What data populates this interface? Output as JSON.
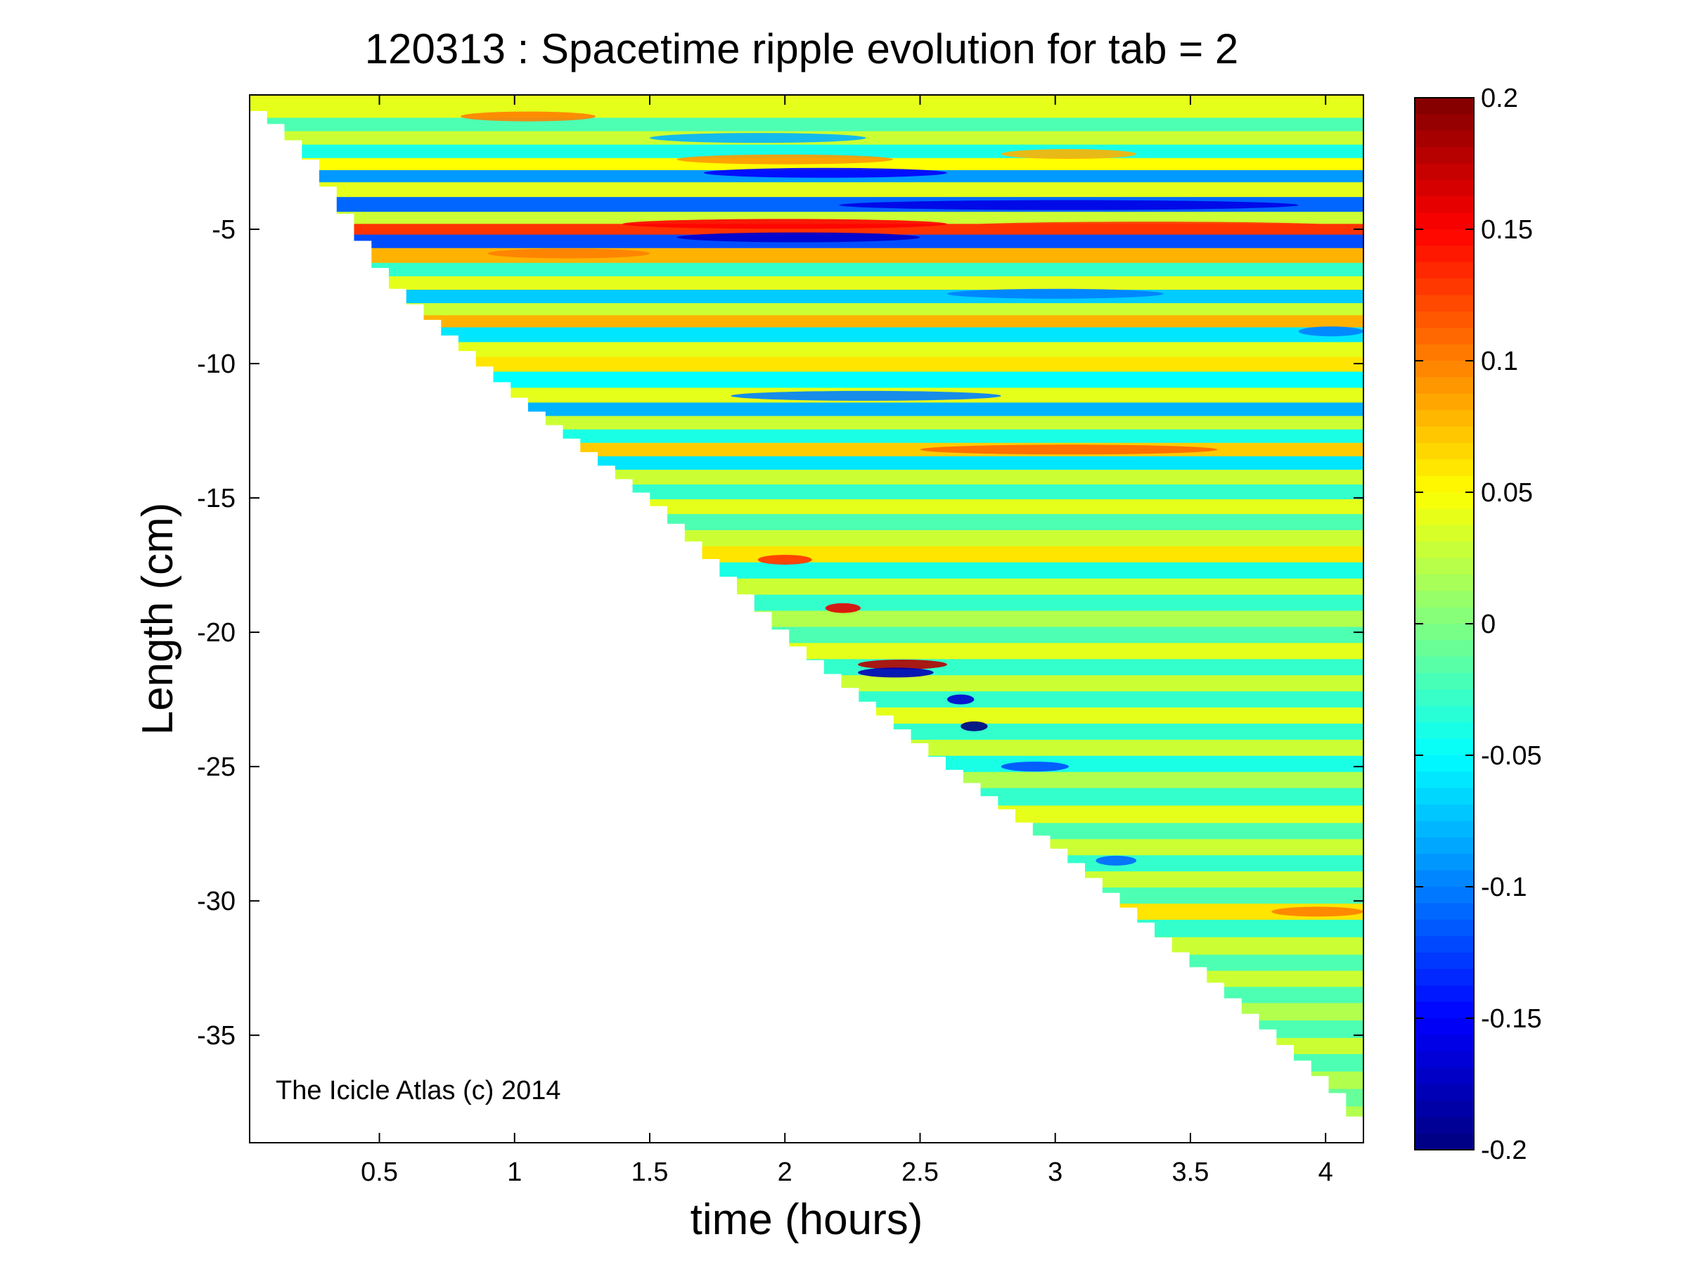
{
  "chart_data": {
    "type": "heatmap",
    "title": "120313 : Spacetime ripple evolution for tab = 2",
    "xlabel": "time (hours)",
    "ylabel": "Length (cm)",
    "annotation": "The Icicle Atlas (c) 2014",
    "xlim": [
      0.02,
      4.14
    ],
    "ylim": [
      -39,
      0
    ],
    "x_ticks": [
      {
        "value": 0.5,
        "label": "0.5"
      },
      {
        "value": 1,
        "label": "1"
      },
      {
        "value": 1.5,
        "label": "1.5"
      },
      {
        "value": 2,
        "label": "2"
      },
      {
        "value": 2.5,
        "label": "2.5"
      },
      {
        "value": 3,
        "label": "3"
      },
      {
        "value": 3.5,
        "label": "3.5"
      },
      {
        "value": 4,
        "label": "4"
      }
    ],
    "y_ticks": [
      {
        "value": -5,
        "label": "-5"
      },
      {
        "value": -10,
        "label": "-10"
      },
      {
        "value": -15,
        "label": "-15"
      },
      {
        "value": -20,
        "label": "-20"
      },
      {
        "value": -25,
        "label": "-25"
      },
      {
        "value": -30,
        "label": "-30"
      },
      {
        "value": -35,
        "label": "-35"
      }
    ],
    "colorbar": {
      "range": [
        -0.2,
        0.2
      ],
      "colormap": "jet",
      "ticks": [
        {
          "value": 0.2,
          "label": "0.2"
        },
        {
          "value": 0.15,
          "label": "0.15"
        },
        {
          "value": 0.1,
          "label": "0.1"
        },
        {
          "value": 0.05,
          "label": "0.05"
        },
        {
          "value": 0,
          "label": "0"
        },
        {
          "value": -0.05,
          "label": "-0.05"
        },
        {
          "value": -0.1,
          "label": "-0.1"
        },
        {
          "value": -0.15,
          "label": "-0.15"
        },
        {
          "value": -0.2,
          "label": "-0.2"
        }
      ]
    },
    "grid": false,
    "data_boundary": [
      {
        "t": 0.02,
        "length": -0.6
      },
      {
        "t": 0.1,
        "length": -1.2
      },
      {
        "t": 0.2,
        "length": -2.2
      },
      {
        "t": 0.5,
        "length": -6.9
      },
      {
        "t": 1.0,
        "length": -11.4
      },
      {
        "t": 1.5,
        "length": -15.3
      },
      {
        "t": 2.0,
        "length": -20.4
      },
      {
        "t": 2.5,
        "length": -24.4
      },
      {
        "t": 3.0,
        "length": -28.2
      },
      {
        "t": 3.5,
        "length": -32.5
      },
      {
        "t": 4.0,
        "length": -37.0
      },
      {
        "t": 4.14,
        "length": -38.9
      }
    ],
    "bands": [
      {
        "length": -0.6,
        "value": 0.04
      },
      {
        "length": -1.1,
        "value": -0.02
      },
      {
        "length": -1.6,
        "value": 0.03
      },
      {
        "length": -2.1,
        "value": -0.04
      },
      {
        "length": -2.6,
        "value": 0.05
      },
      {
        "length": -3.0,
        "value": -0.09
      },
      {
        "length": -3.5,
        "value": 0.04
      },
      {
        "length": -4.1,
        "value": -0.11
      },
      {
        "length": -4.6,
        "value": 0.03
      },
      {
        "length": -5.0,
        "value": 0.13
      },
      {
        "length": -5.4,
        "value": -0.12
      },
      {
        "length": -6.0,
        "value": 0.08
      },
      {
        "length": -6.5,
        "value": -0.03
      },
      {
        "length": -7.0,
        "value": 0.04
      },
      {
        "length": -7.5,
        "value": -0.07
      },
      {
        "length": -8.0,
        "value": 0.03
      },
      {
        "length": -8.4,
        "value": 0.08
      },
      {
        "length": -8.9,
        "value": -0.06
      },
      {
        "length": -9.5,
        "value": 0.04
      },
      {
        "length": -10.0,
        "value": 0.06
      },
      {
        "length": -10.6,
        "value": -0.05
      },
      {
        "length": -11.2,
        "value": 0.04
      },
      {
        "length": -11.7,
        "value": -0.08
      },
      {
        "length": -12.2,
        "value": 0.03
      },
      {
        "length": -12.7,
        "value": -0.04
      },
      {
        "length": -13.2,
        "value": 0.07
      },
      {
        "length": -13.7,
        "value": -0.06
      },
      {
        "length": -14.2,
        "value": 0.03
      },
      {
        "length": -14.8,
        "value": -0.03
      },
      {
        "length": -15.3,
        "value": 0.04
      },
      {
        "length": -15.9,
        "value": -0.02
      },
      {
        "length": -16.5,
        "value": 0.03
      },
      {
        "length": -17.1,
        "value": 0.06
      },
      {
        "length": -17.7,
        "value": -0.04
      },
      {
        "length": -18.3,
        "value": 0.03
      },
      {
        "length": -18.9,
        "value": -0.03
      },
      {
        "length": -19.5,
        "value": 0.02
      },
      {
        "length": -20.1,
        "value": -0.02
      },
      {
        "length": -20.7,
        "value": 0.04
      },
      {
        "length": -21.3,
        "value": -0.03
      },
      {
        "length": -21.9,
        "value": 0.03
      },
      {
        "length": -22.5,
        "value": -0.03
      },
      {
        "length": -23.1,
        "value": 0.04
      },
      {
        "length": -23.7,
        "value": -0.03
      },
      {
        "length": -24.3,
        "value": 0.03
      },
      {
        "length": -24.9,
        "value": -0.04
      },
      {
        "length": -25.5,
        "value": 0.02
      },
      {
        "length": -26.1,
        "value": -0.03
      },
      {
        "length": -26.8,
        "value": 0.04
      },
      {
        "length": -27.4,
        "value": -0.02
      },
      {
        "length": -28.0,
        "value": 0.03
      },
      {
        "length": -28.6,
        "value": -0.03
      },
      {
        "length": -29.2,
        "value": 0.03
      },
      {
        "length": -29.8,
        "value": -0.02
      },
      {
        "length": -30.4,
        "value": 0.06
      },
      {
        "length": -31.0,
        "value": -0.03
      },
      {
        "length": -31.7,
        "value": 0.03
      },
      {
        "length": -32.3,
        "value": -0.02
      },
      {
        "length": -32.9,
        "value": 0.03
      },
      {
        "length": -33.5,
        "value": -0.02
      },
      {
        "length": -34.1,
        "value": 0.02
      },
      {
        "length": -34.8,
        "value": -0.02
      },
      {
        "length": -35.4,
        "value": 0.03
      },
      {
        "length": -36.0,
        "value": -0.02
      },
      {
        "length": -36.7,
        "value": 0.02
      },
      {
        "length": -37.3,
        "value": -0.01
      },
      {
        "length": -38.0,
        "value": 0.02
      },
      {
        "length": -38.6,
        "value": 0.0
      }
    ],
    "features": [
      {
        "t_start": 0.8,
        "t_end": 1.3,
        "length": -0.8,
        "value": 0.1
      },
      {
        "t_start": 1.5,
        "t_end": 2.3,
        "length": -1.6,
        "value": -0.08
      },
      {
        "t_start": 1.6,
        "t_end": 2.4,
        "length": -2.4,
        "value": 0.09
      },
      {
        "t_start": 1.7,
        "t_end": 2.6,
        "length": -2.9,
        "value": -0.15
      },
      {
        "t_start": 2.8,
        "t_end": 3.3,
        "length": -2.2,
        "value": 0.08
      },
      {
        "t_start": 2.2,
        "t_end": 3.9,
        "length": -4.1,
        "value": -0.16
      },
      {
        "t_start": 1.4,
        "t_end": 2.6,
        "length": -4.8,
        "value": 0.15
      },
      {
        "t_start": 2.6,
        "t_end": 4.1,
        "length": -4.9,
        "value": 0.13
      },
      {
        "t_start": 1.6,
        "t_end": 2.5,
        "length": -5.3,
        "value": -0.17
      },
      {
        "t_start": 0.9,
        "t_end": 1.5,
        "length": -5.9,
        "value": 0.1
      },
      {
        "t_start": 2.6,
        "t_end": 3.4,
        "length": -7.4,
        "value": -0.1
      },
      {
        "t_start": 3.9,
        "t_end": 4.14,
        "length": -8.8,
        "value": -0.1
      },
      {
        "t_start": 1.8,
        "t_end": 2.8,
        "length": -11.2,
        "value": -0.1
      },
      {
        "t_start": 2.5,
        "t_end": 3.6,
        "length": -13.2,
        "value": 0.11
      },
      {
        "t_start": 1.9,
        "t_end": 2.1,
        "length": -17.3,
        "value": 0.13
      },
      {
        "t_start": 2.15,
        "t_end": 2.28,
        "length": -19.1,
        "value": 0.16
      },
      {
        "t_start": 2.27,
        "t_end": 2.6,
        "length": -21.2,
        "value": 0.18
      },
      {
        "t_start": 2.27,
        "t_end": 2.55,
        "length": -21.5,
        "value": -0.18
      },
      {
        "t_start": 2.6,
        "t_end": 2.7,
        "length": -22.5,
        "value": -0.17
      },
      {
        "t_start": 2.65,
        "t_end": 2.75,
        "length": -23.5,
        "value": -0.2
      },
      {
        "t_start": 2.8,
        "t_end": 3.05,
        "length": -25.0,
        "value": -0.12
      },
      {
        "t_start": 3.15,
        "t_end": 3.3,
        "length": -28.5,
        "value": -0.11
      },
      {
        "t_start": 3.8,
        "t_end": 4.14,
        "length": -30.4,
        "value": 0.1
      }
    ]
  }
}
